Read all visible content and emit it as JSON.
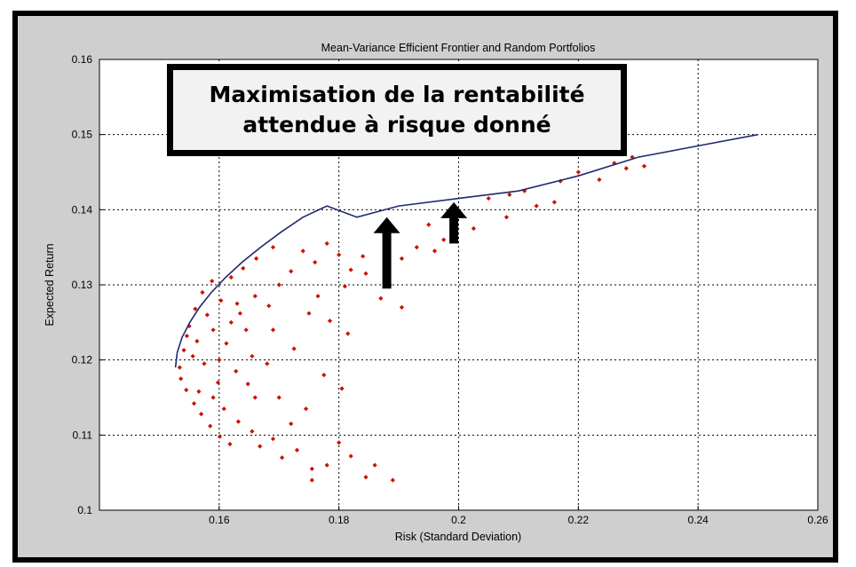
{
  "chart_data": {
    "type": "scatter",
    "title": "Mean-Variance Efficient Frontier and Random Portfolios",
    "xlabel": "Risk (Standard Deviation)",
    "ylabel": "Expected Return",
    "xlim": [
      0.14,
      0.26
    ],
    "ylim": [
      0.1,
      0.16
    ],
    "xticks": [
      "0.16",
      "0.18",
      "0.2",
      "0.22",
      "0.24",
      "0.26"
    ],
    "yticks": [
      "0.1",
      "0.11",
      "0.12",
      "0.13",
      "0.14",
      "0.15",
      "0.16"
    ],
    "grid": true,
    "frontier": {
      "x": [
        0.1527,
        0.153,
        0.1538,
        0.1551,
        0.1567,
        0.1587,
        0.1611,
        0.1638,
        0.1669,
        0.1703,
        0.174,
        0.178,
        0.183,
        0.19,
        0.2,
        0.21,
        0.22,
        0.23,
        0.24,
        0.25
      ],
      "y": [
        0.119,
        0.121,
        0.123,
        0.125,
        0.127,
        0.129,
        0.131,
        0.133,
        0.135,
        0.137,
        0.139,
        0.1405,
        0.139,
        0.1405,
        0.1415,
        0.1425,
        0.1445,
        0.147,
        0.1485,
        0.15
      ],
      "color": "#1f2a70"
    },
    "random_portfolios": {
      "color": "#cc1100",
      "points": [
        [
          0.1534,
          0.119
        ],
        [
          0.1541,
          0.1213
        ],
        [
          0.1536,
          0.1175
        ],
        [
          0.155,
          0.1245
        ],
        [
          0.1545,
          0.116
        ],
        [
          0.156,
          0.1268
        ],
        [
          0.1558,
          0.1142
        ],
        [
          0.1572,
          0.129
        ],
        [
          0.157,
          0.1128
        ],
        [
          0.1588,
          0.1305
        ],
        [
          0.1585,
          0.1112
        ],
        [
          0.1603,
          0.1279
        ],
        [
          0.1601,
          0.1098
        ],
        [
          0.162,
          0.131
        ],
        [
          0.1618,
          0.1088
        ],
        [
          0.164,
          0.1322
        ],
        [
          0.1635,
          0.1262
        ],
        [
          0.1662,
          0.1335
        ],
        [
          0.1655,
          0.1205
        ],
        [
          0.169,
          0.135
        ],
        [
          0.1563,
          0.1225
        ],
        [
          0.1575,
          0.1195
        ],
        [
          0.159,
          0.124
        ],
        [
          0.1598,
          0.117
        ],
        [
          0.1612,
          0.1222
        ],
        [
          0.1628,
          0.1185
        ],
        [
          0.1645,
          0.124
        ],
        [
          0.166,
          0.115
        ],
        [
          0.1683,
          0.1272
        ],
        [
          0.17,
          0.13
        ],
        [
          0.172,
          0.1318
        ],
        [
          0.174,
          0.1345
        ],
        [
          0.176,
          0.133
        ],
        [
          0.178,
          0.1355
        ],
        [
          0.18,
          0.134
        ],
        [
          0.182,
          0.132
        ],
        [
          0.1845,
          0.1315
        ],
        [
          0.187,
          0.1372
        ],
        [
          0.1885,
          0.13
        ],
        [
          0.1905,
          0.1335
        ],
        [
          0.193,
          0.135
        ],
        [
          0.195,
          0.138
        ],
        [
          0.1975,
          0.136
        ],
        [
          0.2,
          0.1395
        ],
        [
          0.2025,
          0.1375
        ],
        [
          0.205,
          0.1415
        ],
        [
          0.208,
          0.139
        ],
        [
          0.211,
          0.1425
        ],
        [
          0.213,
          0.1405
        ],
        [
          0.217,
          0.1438
        ],
        [
          0.22,
          0.145
        ],
        [
          0.2235,
          0.144
        ],
        [
          0.226,
          0.1462
        ],
        [
          0.228,
          0.1455
        ],
        [
          0.231,
          0.1458
        ],
        [
          0.229,
          0.147
        ],
        [
          0.216,
          0.141
        ],
        [
          0.2085,
          0.142
        ],
        [
          0.196,
          0.1345
        ],
        [
          0.184,
          0.1338
        ],
        [
          0.1655,
          0.1105
        ],
        [
          0.1668,
          0.1085
        ],
        [
          0.169,
          0.1095
        ],
        [
          0.1705,
          0.107
        ],
        [
          0.173,
          0.108
        ],
        [
          0.1755,
          0.1055
        ],
        [
          0.178,
          0.106
        ],
        [
          0.18,
          0.109
        ],
        [
          0.182,
          0.1072
        ],
        [
          0.1845,
          0.1044
        ],
        [
          0.186,
          0.106
        ],
        [
          0.189,
          0.104
        ],
        [
          0.1755,
          0.104
        ],
        [
          0.172,
          0.1115
        ],
        [
          0.1745,
          0.1135
        ],
        [
          0.17,
          0.115
        ],
        [
          0.1775,
          0.118
        ],
        [
          0.1805,
          0.1162
        ],
        [
          0.168,
          0.1195
        ],
        [
          0.1725,
          0.1215
        ],
        [
          0.169,
          0.124
        ],
        [
          0.175,
          0.1262
        ],
        [
          0.1785,
          0.1252
        ],
        [
          0.1815,
          0.1235
        ],
        [
          0.187,
          0.1282
        ],
        [
          0.1905,
          0.127
        ],
        [
          0.1765,
          0.1285
        ],
        [
          0.181,
          0.1298
        ],
        [
          0.166,
          0.1285
        ],
        [
          0.163,
          0.1275
        ],
        [
          0.159,
          0.115
        ],
        [
          0.1608,
          0.1135
        ],
        [
          0.1632,
          0.1118
        ],
        [
          0.1648,
          0.1168
        ],
        [
          0.158,
          0.126
        ],
        [
          0.1556,
          0.1205
        ],
        [
          0.1546,
          0.1232
        ],
        [
          0.1566,
          0.1158
        ],
        [
          0.16,
          0.12
        ],
        [
          0.162,
          0.125
        ]
      ]
    },
    "annotations": {
      "callout": "Maximisation de la rentabilité attendue à risque donné",
      "callout_lines": [
        "Maximisation de la rentabilité",
        "attendue à risque donné"
      ],
      "arrows": [
        {
          "x": 0.188,
          "y_from": 0.1295,
          "y_to": 0.139
        },
        {
          "x": 0.1992,
          "y_from": 0.1355,
          "y_to": 0.141
        }
      ]
    }
  }
}
